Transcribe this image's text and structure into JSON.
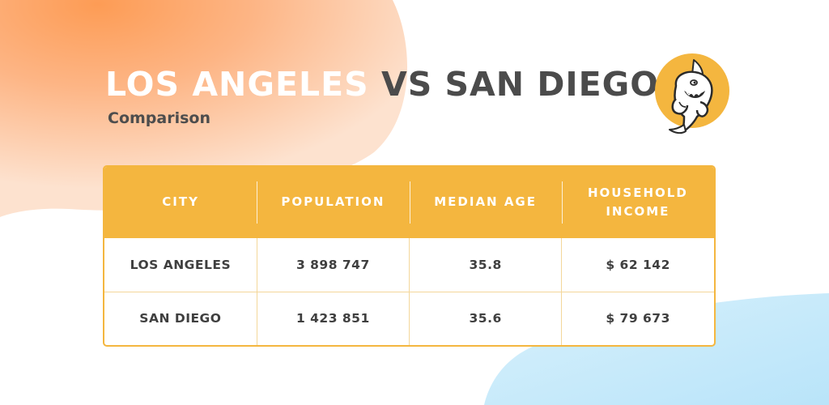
{
  "header": {
    "title_part1": "LOS ANGELES",
    "title_part2": "VS SAN DIEGO",
    "subtitle": "Comparison"
  },
  "logo": {
    "icon": "shark-mascot-icon",
    "color": "#f4b63f"
  },
  "colors": {
    "accent": "#f4b63f",
    "title_dark": "#4b4b4b",
    "blob_orange": "#fdb585",
    "blob_blue": "#c9ebfa"
  },
  "table": {
    "headers": {
      "city": "CITY",
      "population": "POPULATION",
      "median_age": "MEDIAN AGE",
      "household_income": "HOUSEHOLD INCOME"
    },
    "rows": [
      {
        "city": "LOS ANGELES",
        "population": "3 898 747",
        "median_age": "35.8",
        "household_income": "$ 62 142"
      },
      {
        "city": "SAN DIEGO",
        "population": "1 423 851",
        "median_age": "35.6",
        "household_income": "$ 79 673"
      }
    ]
  }
}
